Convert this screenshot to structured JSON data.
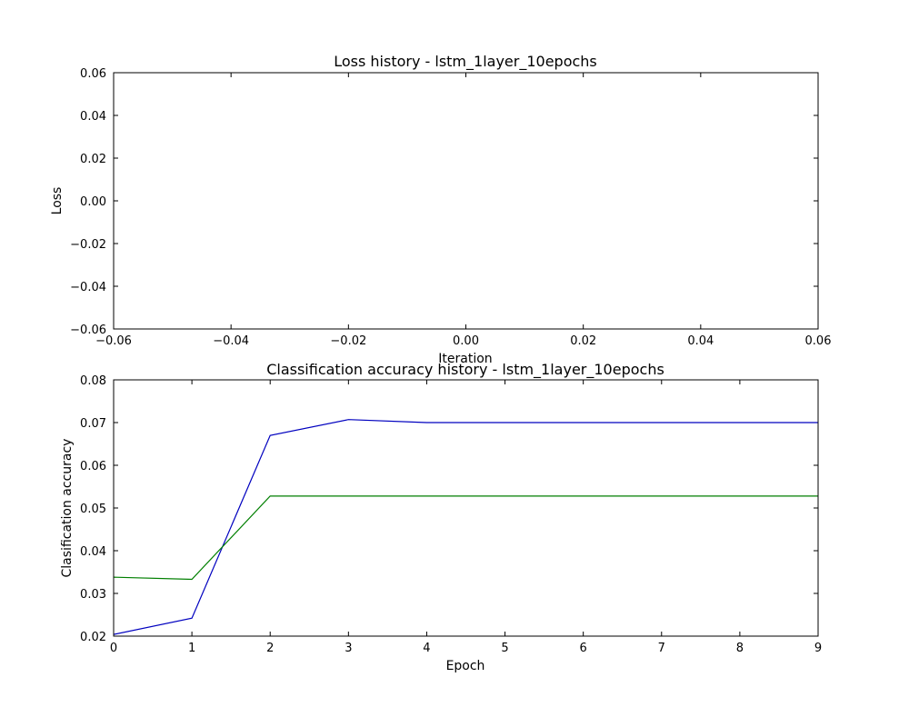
{
  "chart_data": [
    {
      "type": "line",
      "title": "Loss history - lstm_1layer_10epochs",
      "xlabel": "Iteration",
      "ylabel": "Loss",
      "xlim": [
        -0.06,
        0.06
      ],
      "ylim": [
        -0.06,
        0.06
      ],
      "x_ticks": [
        -0.06,
        -0.04,
        -0.02,
        0.0,
        0.02,
        0.04,
        0.06
      ],
      "y_ticks": [
        -0.06,
        -0.04,
        -0.02,
        0.0,
        0.02,
        0.04,
        0.06
      ],
      "x_tick_labels": [
        "−0.06",
        "−0.04",
        "−0.02",
        "0.00",
        "0.02",
        "0.04",
        "0.06"
      ],
      "y_tick_labels": [
        "−0.06",
        "−0.04",
        "−0.02",
        "0.00",
        "0.02",
        "0.04",
        "0.06"
      ],
      "grid": false,
      "series": []
    },
    {
      "type": "line",
      "title": "Classification accuracy history - lstm_1layer_10epochs",
      "xlabel": "Epoch",
      "ylabel": "Clasification accuracy",
      "xlim": [
        0,
        9
      ],
      "ylim": [
        0.02,
        0.08
      ],
      "x_ticks": [
        0,
        1,
        2,
        3,
        4,
        5,
        6,
        7,
        8,
        9
      ],
      "y_ticks": [
        0.02,
        0.03,
        0.04,
        0.05,
        0.06,
        0.07,
        0.08
      ],
      "x_tick_labels": [
        "0",
        "1",
        "2",
        "3",
        "4",
        "5",
        "6",
        "7",
        "8",
        "9"
      ],
      "y_tick_labels": [
        "0.02",
        "0.03",
        "0.04",
        "0.05",
        "0.06",
        "0.07",
        "0.08"
      ],
      "grid": false,
      "x": [
        0,
        1,
        2,
        3,
        4,
        5,
        6,
        7,
        8,
        9
      ],
      "series": [
        {
          "color": "#0000bf",
          "values": [
            0.0204,
            0.0242,
            0.067,
            0.0707,
            0.07,
            0.07,
            0.07,
            0.07,
            0.07,
            0.07
          ]
        },
        {
          "color": "#007f00",
          "values": [
            0.0338,
            0.0333,
            0.0528,
            0.0528,
            0.0528,
            0.0528,
            0.0528,
            0.0528,
            0.0528,
            0.0528
          ]
        }
      ]
    }
  ]
}
